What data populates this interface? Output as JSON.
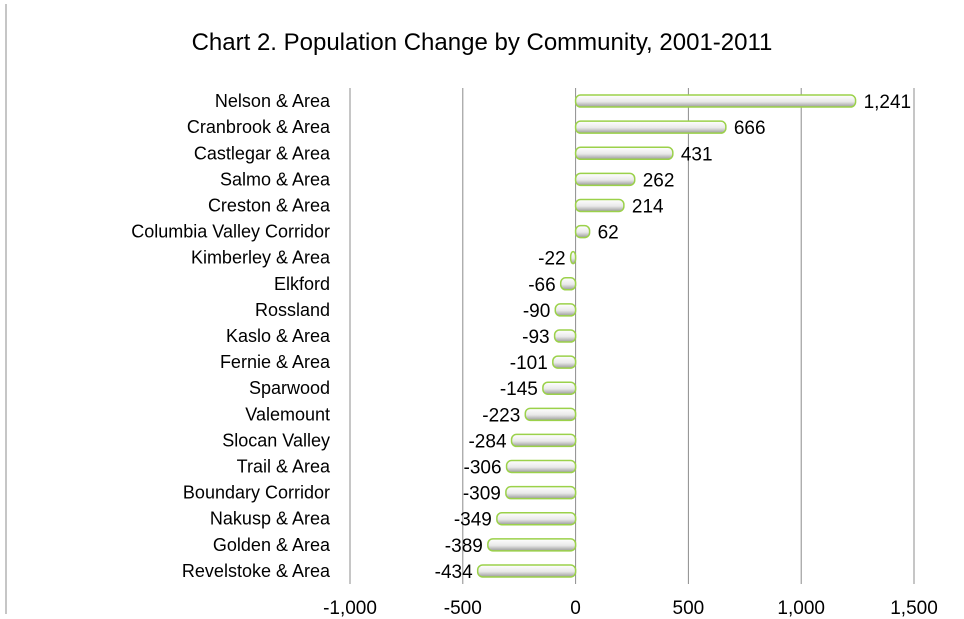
{
  "chart_data": {
    "type": "bar",
    "orientation": "horizontal",
    "title": "Chart 2. Population Change by Community, 2001-2011",
    "xlabel": "",
    "ylabel": "",
    "xlim": [
      -1000,
      1500
    ],
    "x_ticks": [
      -1000,
      -500,
      0,
      500,
      1000,
      1500
    ],
    "x_tick_labels": [
      "-1,000",
      "-500",
      "0",
      "500",
      "1,000",
      "1,500"
    ],
    "grid": "vertical major gridlines",
    "legend": "none",
    "colors": {
      "bar_fill": "#e8e8e8",
      "bar_outline": "#9bd14a",
      "grid": "#8c8c8c"
    },
    "categories": [
      "Nelson & Area",
      "Cranbrook & Area",
      "Castlegar & Area",
      "Salmo & Area",
      "Creston & Area",
      "Columbia Valley Corridor",
      "Kimberley & Area",
      "Elkford",
      "Rossland",
      "Kaslo & Area",
      "Fernie & Area",
      "Sparwood",
      "Valemount",
      "Slocan Valley",
      "Trail & Area",
      "Boundary Corridor",
      "Nakusp & Area",
      "Golden & Area",
      "Revelstoke & Area"
    ],
    "values": [
      1241,
      666,
      431,
      262,
      214,
      62,
      -22,
      -66,
      -90,
      -93,
      -101,
      -145,
      -223,
      -284,
      -306,
      -309,
      -349,
      -389,
      -434
    ],
    "data_labels": [
      "1,241",
      "666",
      "431",
      "262",
      "214",
      "62",
      "-22",
      "-66",
      "-90",
      "-93",
      "-101",
      "-145",
      "-223",
      "-284",
      "-306",
      "-309",
      "-349",
      "-389",
      "-434"
    ]
  }
}
